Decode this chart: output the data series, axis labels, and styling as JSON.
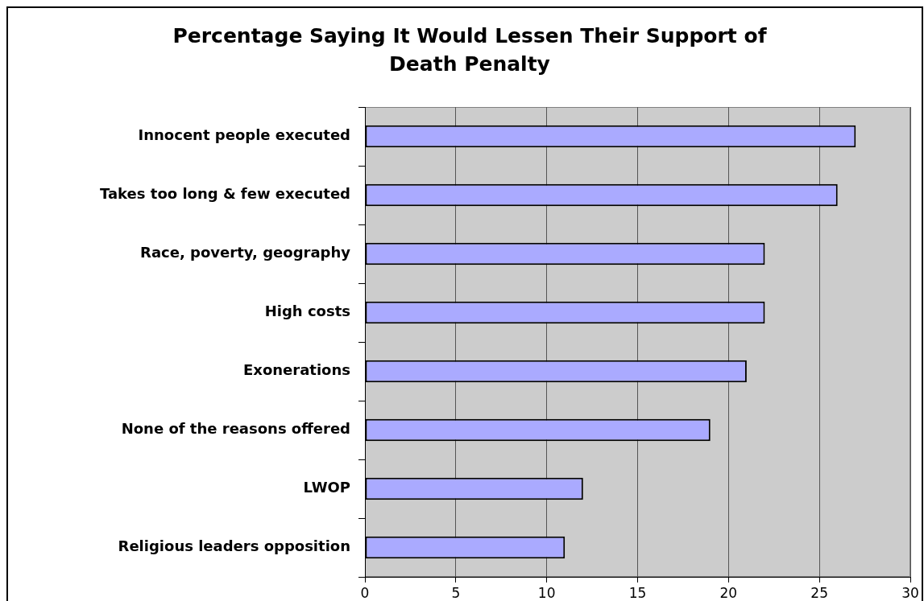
{
  "chart_data": {
    "type": "bar",
    "orientation": "horizontal",
    "title": "Percentage Saying It Would Lessen Their Support of Death Penalty",
    "categories": [
      "Innocent people executed",
      "Takes too long & few executed",
      "Race, poverty, geography",
      "High costs",
      "Exonerations",
      "None of the reasons offered",
      "LWOP",
      "Religious leaders opposition"
    ],
    "values": [
      27,
      26,
      22,
      22,
      21,
      19,
      12,
      11
    ],
    "color": "#aaaaff",
    "xlim": [
      0,
      30
    ],
    "xticks": [
      0,
      5,
      10,
      15,
      20,
      25,
      30
    ],
    "grid": "x"
  }
}
